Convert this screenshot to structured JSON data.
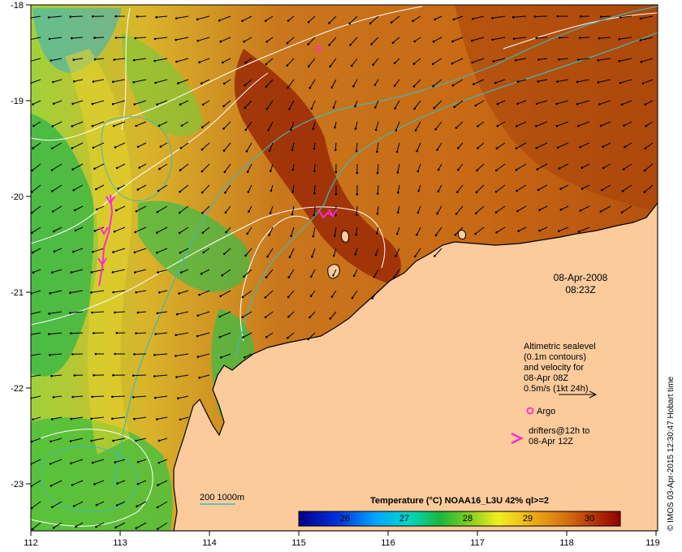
{
  "map": {
    "lon_ticks": [
      "112",
      "113",
      "114",
      "115",
      "116",
      "117",
      "118",
      "119"
    ],
    "lat_ticks": [
      "-18",
      "-19",
      "-20",
      "-21",
      "-22",
      "-23"
    ],
    "date_line1": "08-Apr-2008",
    "date_line2": "08:23Z",
    "legend": {
      "line1": "Altimetric sealevel",
      "line2": "(0.1m contours)",
      "line3": "and velocity for",
      "line4": "08-Apr 08Z",
      "line5": "0.5m/s (1kt 24h)",
      "argo": "Argo",
      "drifters1": "drifters@12h to",
      "drifters2": "08-Apr 12Z"
    },
    "depth_label": "200  1000m",
    "colorbar": {
      "title": "Temperature (°C) NOAA16_L3U 42% ql>=2",
      "ticks": [
        "26",
        "27",
        "28",
        "29",
        "30"
      ]
    },
    "credit": "© IMOS 03-Apr-2015 12:30:47 Hobart time",
    "colors": {
      "land": "#fccb9c",
      "warm": "#a23a08",
      "mid": "#d8881c",
      "cool": "#33b84b",
      "contour": "#ffffff",
      "isobath": "#3fb8b8",
      "drifter": "#ff2ad0"
    }
  }
}
